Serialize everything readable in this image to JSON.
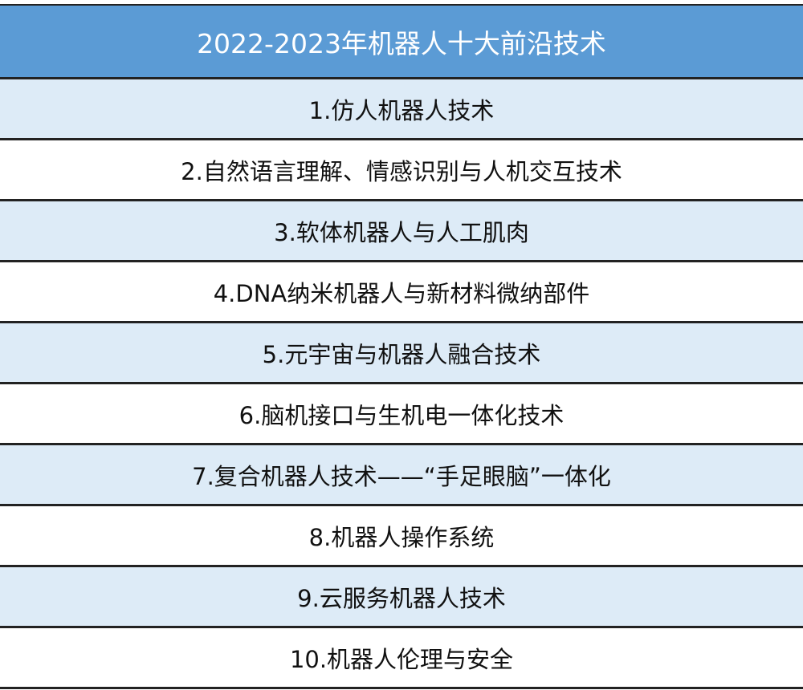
{
  "table": {
    "title": "2022-2023年机器人十大前沿技术",
    "items": [
      "1.仿人机器人技术",
      "2.自然语言理解、情感识别与人机交互技术",
      "3.软体机器人与人工肌肉",
      "4.DNA纳米机器人与新材料微纳部件",
      "5.元宇宙与机器人融合技术",
      "6.脑机接口与生机电一体化技术",
      "7.复合机器人技术——“手足眼脑”一体化",
      "8.机器人操作系统",
      "9.云服务机器人技术",
      "10.机器人伦理与安全"
    ]
  },
  "colors": {
    "header_bg": "#5b9bd5",
    "stripe_bg": "#ddebf7",
    "border": "#222222"
  }
}
